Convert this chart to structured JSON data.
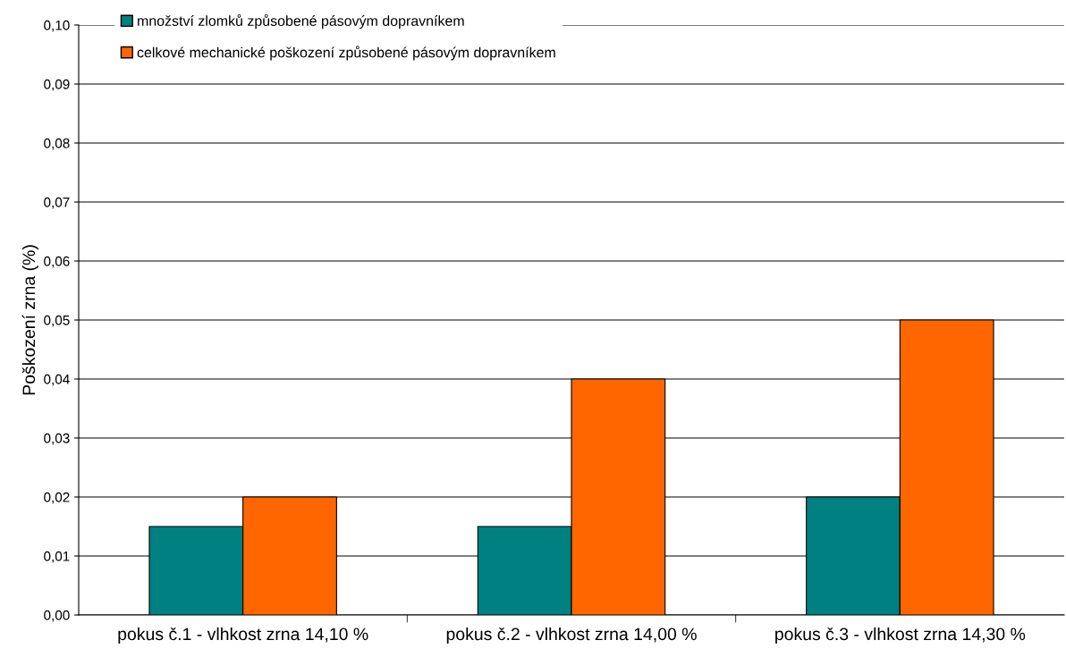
{
  "chart_data": {
    "type": "bar",
    "ylabel": "Poškození zrna (%)",
    "categories": [
      "pokus č.1 - vlhkost zrna 14,10 %",
      "pokus č.2 - vlhkost zrna 14,00 %",
      "pokus č.3 - vlhkost zrna 14,30 %"
    ],
    "series": [
      {
        "name": "množství zlomků způsobené pásovým dopravníkem",
        "color": "#008080",
        "values": [
          0.015,
          0.015,
          0.02
        ]
      },
      {
        "name": "celkové mechanické poškození způsobené pásovým dopravníkem",
        "color": "#ff6600",
        "values": [
          0.02,
          0.04,
          0.05
        ]
      }
    ],
    "ylim": [
      0,
      0.1
    ],
    "yticks": [
      {
        "value": 0,
        "label": "0,00"
      },
      {
        "value": 0.01,
        "label": "0,01"
      },
      {
        "value": 0.02,
        "label": "0,02"
      },
      {
        "value": 0.03,
        "label": "0,03"
      },
      {
        "value": 0.04,
        "label": "0,04"
      },
      {
        "value": 0.05,
        "label": "0,05"
      },
      {
        "value": 0.06,
        "label": "0,06"
      },
      {
        "value": 0.07,
        "label": "0,07"
      },
      {
        "value": 0.08,
        "label": "0,08"
      },
      {
        "value": 0.09,
        "label": "0,09"
      },
      {
        "value": 0.1,
        "label": "0,10"
      }
    ],
    "grid": "y",
    "legend": "top left"
  }
}
